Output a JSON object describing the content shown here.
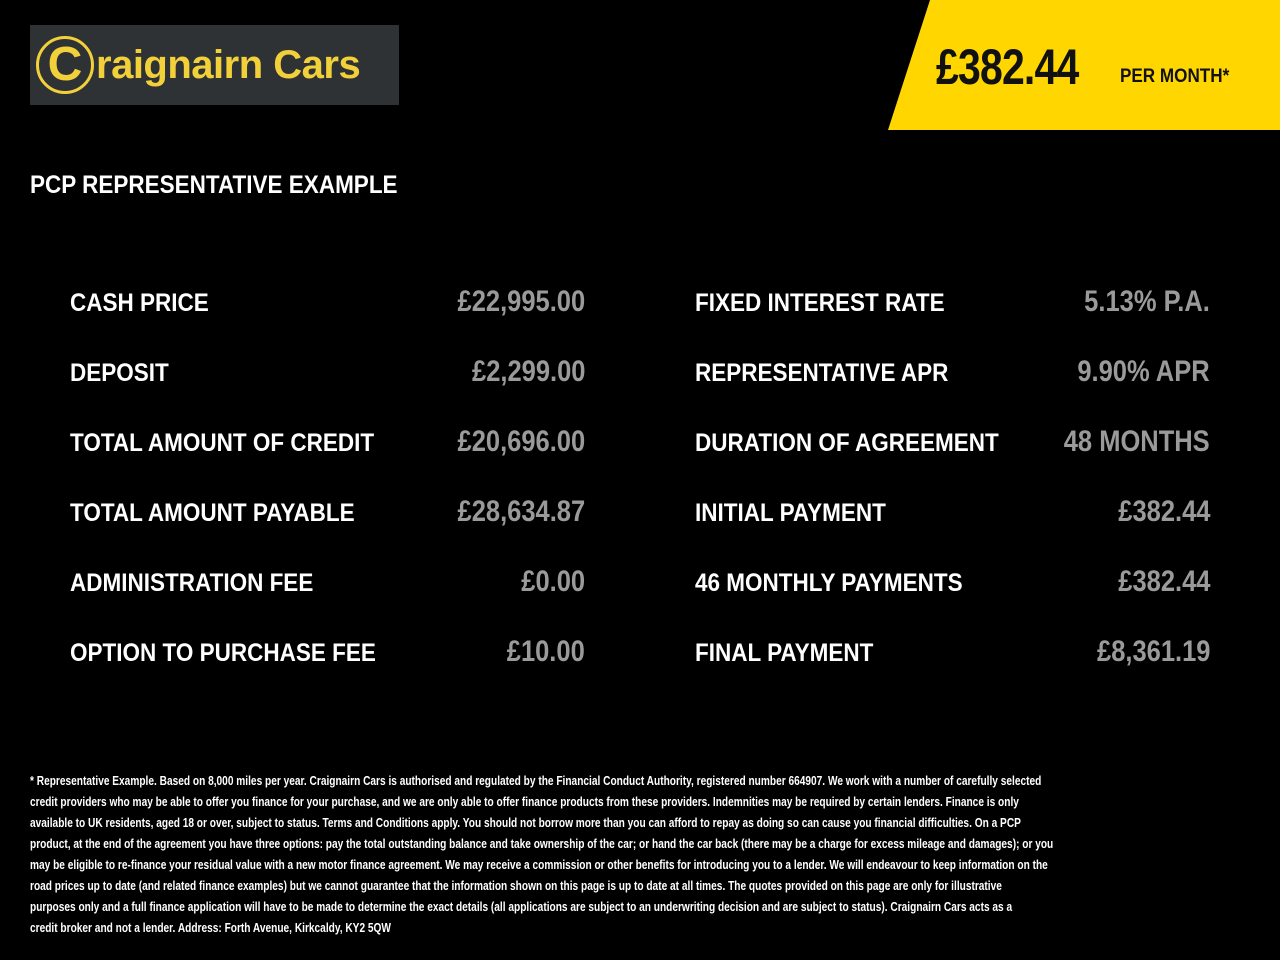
{
  "logo": {
    "text": "Craignairn Cars",
    "mark": "C",
    "accent_color": "#f1d03a"
  },
  "banner": {
    "price": "£382.44",
    "per_month": "PER MONTH*",
    "color": "#ffd600"
  },
  "section_title": "PCP REPRESENTATIVE EXAMPLE",
  "left_rows": [
    {
      "label": "CASH PRICE",
      "value": "£22,995.00"
    },
    {
      "label": "DEPOSIT",
      "value": "£2,299.00"
    },
    {
      "label": "TOTAL AMOUNT OF CREDIT",
      "value": "£20,696.00"
    },
    {
      "label": "TOTAL AMOUNT PAYABLE",
      "value": "£28,634.87"
    },
    {
      "label": "ADMINISTRATION FEE",
      "value": "£0.00"
    },
    {
      "label": "OPTION TO PURCHASE FEE",
      "value": "£10.00"
    }
  ],
  "right_rows": [
    {
      "label": "FIXED INTEREST RATE",
      "value": "5.13% P.A."
    },
    {
      "label": "REPRESENTATIVE APR",
      "value": "9.90% APR"
    },
    {
      "label": "DURATION OF AGREEMENT",
      "value": "48 MONTHS"
    },
    {
      "label": "INITIAL PAYMENT",
      "value": "£382.44"
    },
    {
      "label": "46 MONTHLY PAYMENTS",
      "value": "£382.44"
    },
    {
      "label": "FINAL PAYMENT",
      "value": "£8,361.19"
    }
  ],
  "disclaimer_lines": [
    "* Representative Example. Based on 8,000 miles per year. Craignairn Cars is authorised and regulated by the Financial Conduct Authority, registered number 664907. We work with a number of carefully selected",
    "credit providers who may be able to offer you finance for your purchase, and we are only able to offer finance products from these providers. Indemnities may be required by certain lenders. Finance is only",
    "available to UK residents, aged 18 or over, subject to status. Terms and Conditions apply. You should not borrow more than you can afford to repay as doing so can cause you financial difficulties. On a PCP",
    "product, at the end of the agreement you have three options: pay the total outstanding balance and take ownership of the car; or hand the car back (there may be a charge for excess mileage and damages); or you",
    "may be eligible to re-finance your residual value with a new motor finance agreement. We may receive a commission or other benefits for introducing you to a lender. We will endeavour to keep information on the",
    "road prices up to date (and related finance examples) but we cannot guarantee that the information shown on this page is up to date at all times. The quotes provided on this page are only for illustrative",
    "purposes only and a full finance application will have to be made to determine the exact details (all applications are subject to an underwriting decision and are subject to status). Craignairn Cars acts as a",
    "credit broker and not a lender. Address: Forth Avenue, Kirkcaldy, KY2 5QW"
  ]
}
